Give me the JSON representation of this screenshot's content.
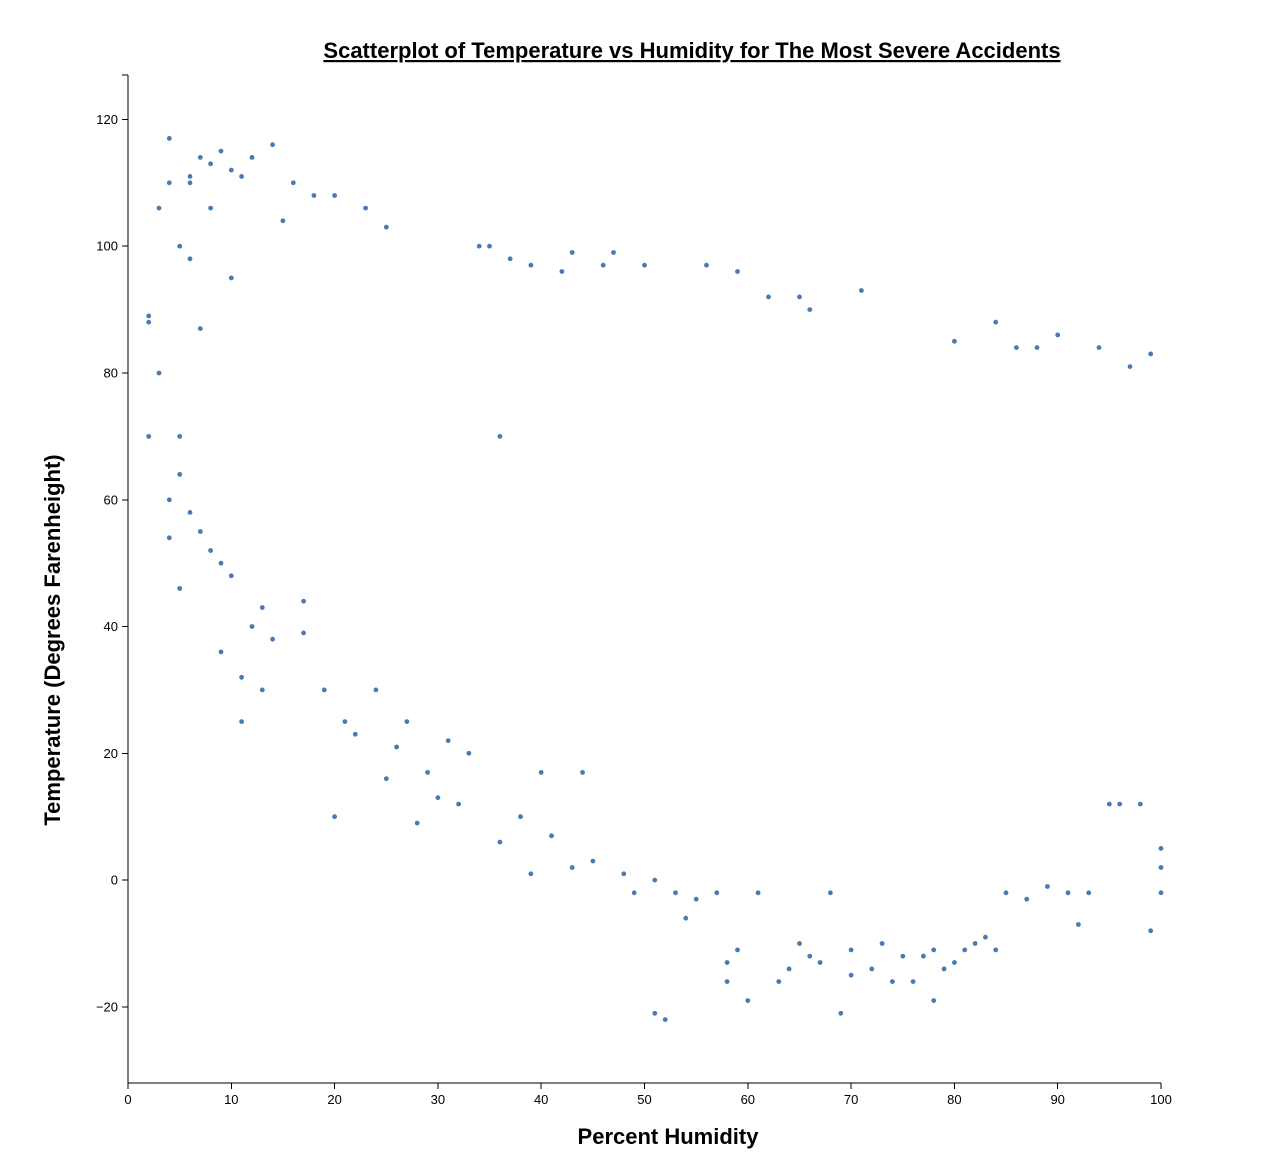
{
  "chart_data": {
    "type": "scatter",
    "title": "Scatterplot of Temperature vs Humidity for The Most Severe Accidents",
    "xlabel": "Percent Humidity",
    "ylabel": "Temperature (Degrees Farenheight)",
    "xlim": [
      0,
      100
    ],
    "ylim": [
      -32,
      127
    ],
    "x_ticks": [
      0,
      10,
      20,
      30,
      40,
      50,
      60,
      70,
      80,
      90,
      100
    ],
    "y_ticks": [
      -20,
      0,
      20,
      40,
      60,
      80,
      100,
      120
    ],
    "x_tick_labels": [
      "0",
      "10",
      "20",
      "30",
      "40",
      "50",
      "60",
      "70",
      "80",
      "90",
      "100"
    ],
    "y_tick_labels": [
      "−20",
      "0",
      "20",
      "40",
      "60",
      "80",
      "100",
      "120"
    ],
    "grid": false,
    "legend": false,
    "colors": {
      "point": "#4a7ab5",
      "axis": "#000000"
    },
    "points_x": [
      2,
      2,
      2,
      3,
      3,
      4,
      4,
      4,
      4,
      5,
      5,
      5,
      5,
      6,
      6,
      6,
      6,
      7,
      7,
      7,
      8,
      8,
      8,
      9,
      9,
      9,
      10,
      10,
      10,
      11,
      11,
      11,
      12,
      12,
      13,
      13,
      14,
      14,
      15,
      16,
      17,
      17,
      18,
      19,
      20,
      20,
      21,
      22,
      23,
      24,
      25,
      25,
      26,
      27,
      28,
      29,
      30,
      31,
      32,
      33,
      34,
      35,
      36,
      36,
      37,
      38,
      39,
      39,
      40,
      41,
      42,
      43,
      43,
      44,
      45,
      46,
      47,
      48,
      49,
      50,
      51,
      51,
      52,
      53,
      54,
      55,
      56,
      57,
      58,
      58,
      59,
      59,
      60,
      61,
      62,
      63,
      64,
      65,
      65,
      66,
      66,
      67,
      68,
      69,
      70,
      70,
      71,
      72,
      73,
      74,
      75,
      76,
      77,
      78,
      78,
      79,
      80,
      80,
      81,
      82,
      83,
      84,
      84,
      85,
      86,
      87,
      88,
      89,
      90,
      91,
      92,
      93,
      94,
      95,
      96,
      97,
      98,
      99,
      99,
      100,
      100,
      100
    ],
    "points_y": [
      70,
      88,
      89,
      80,
      106,
      117,
      60,
      54,
      110,
      100,
      64,
      46,
      70,
      111,
      58,
      98,
      110,
      114,
      55,
      87,
      113,
      52,
      106,
      115,
      50,
      36,
      112,
      48,
      95,
      111,
      25,
      32,
      114,
      40,
      30,
      43,
      116,
      38,
      104,
      110,
      44,
      39,
      108,
      30,
      108,
      10,
      25,
      23,
      106,
      30,
      16,
      103,
      21,
      25,
      9,
      17,
      13,
      22,
      12,
      20,
      100,
      100,
      6,
      70,
      98,
      10,
      1,
      97,
      17,
      7,
      96,
      2,
      99,
      17,
      3,
      97,
      99,
      1,
      -2,
      97,
      -21,
      0,
      -22,
      -2,
      -6,
      -3,
      97,
      -2,
      -13,
      -16,
      -11,
      96,
      -19,
      -2,
      92,
      -16,
      -14,
      -10,
      92,
      -12,
      90,
      -13,
      -2,
      -21,
      -15,
      -11,
      93,
      -14,
      -10,
      -16,
      -12,
      -16,
      -12,
      -11,
      -19,
      -14,
      -13,
      85,
      -11,
      -10,
      -9,
      88,
      -11,
      -2,
      84,
      -3,
      84,
      -1,
      86,
      -2,
      -7,
      -2,
      84,
      12,
      12,
      81,
      12,
      -8,
      83,
      -2,
      2,
      5
    ]
  }
}
